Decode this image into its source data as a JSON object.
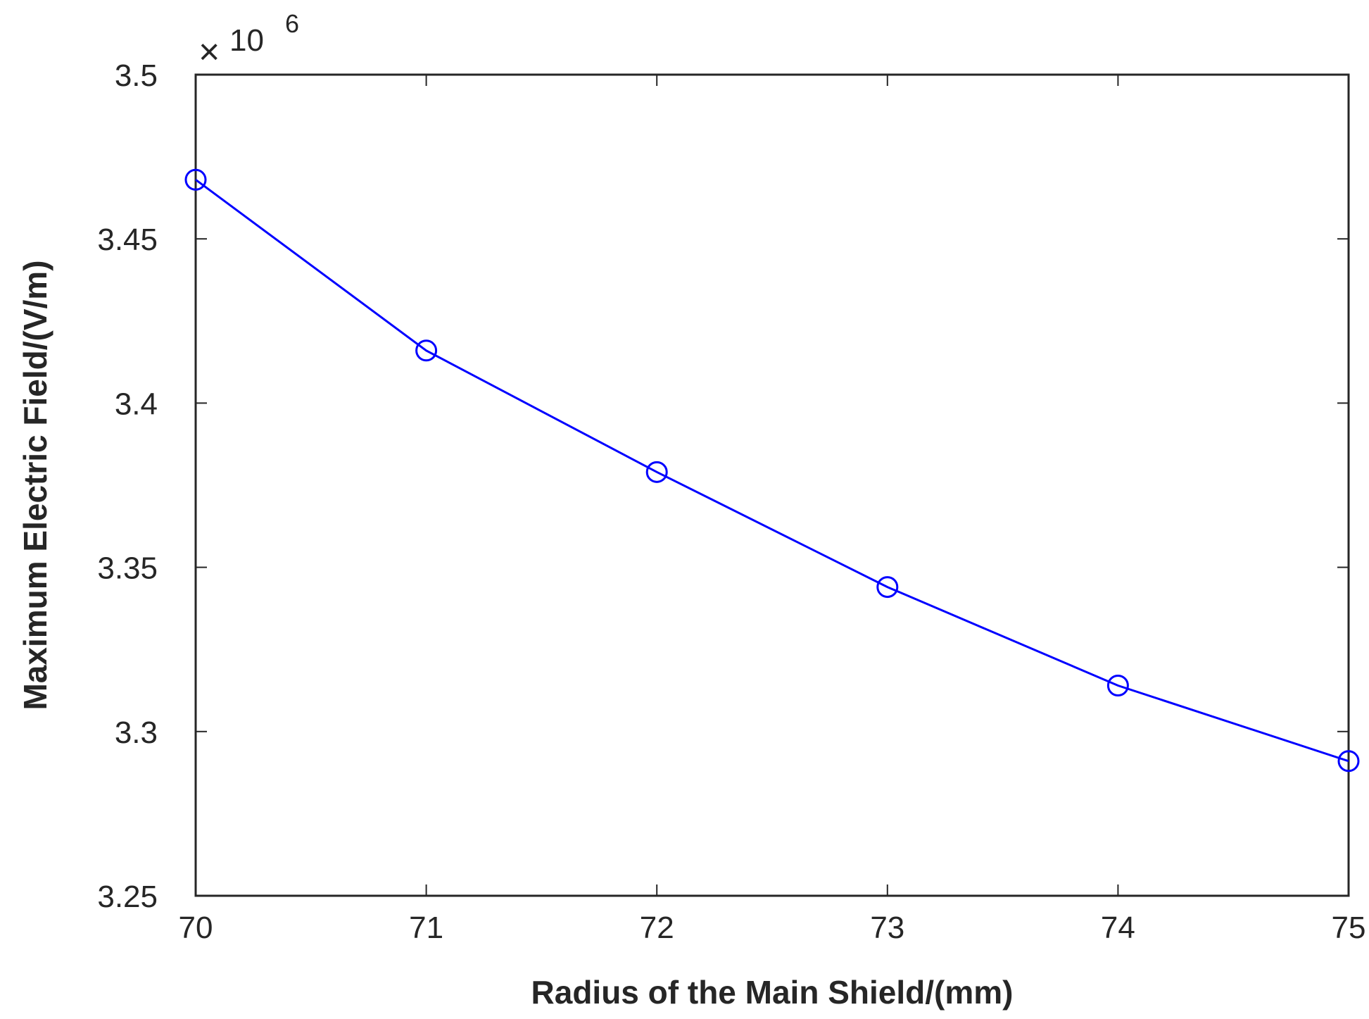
{
  "chart_data": {
    "type": "line",
    "xlabel": "Radius of the Main Shield/(mm)",
    "ylabel": "Maximum Electric Field/(V/m)",
    "y_multiplier": {
      "symbol": "×",
      "base": "10",
      "exponent": "6"
    },
    "x": [
      70,
      71,
      72,
      73,
      74,
      75
    ],
    "series": [
      {
        "values": [
          3.468,
          3.416,
          3.379,
          3.344,
          3.314,
          3.291
        ],
        "color": "#0000ff",
        "marker": "circle"
      }
    ],
    "xlim": [
      70,
      75
    ],
    "ylim": [
      3.25,
      3.5
    ],
    "x_ticks": [
      "70",
      "71",
      "72",
      "73",
      "74",
      "75"
    ],
    "y_ticks": [
      "3.25",
      "3.3",
      "3.35",
      "3.4",
      "3.45",
      "3.5"
    ],
    "grid": false,
    "legend": "none"
  }
}
